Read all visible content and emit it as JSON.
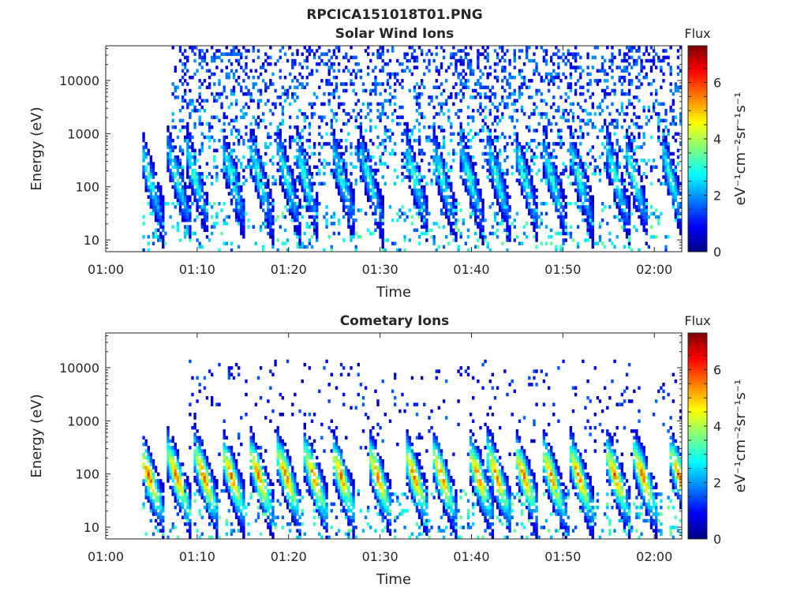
{
  "figure_title": "RPCICA151018T01.PNG",
  "colorbar_palette": [
    "#00007f",
    "#0000ff",
    "#007fff",
    "#00ffff",
    "#7fff7f",
    "#ffff00",
    "#ff7f00",
    "#ff0000",
    "#7f0000"
  ],
  "chart_data": [
    {
      "type": "heatmap",
      "title": "Solar Wind Ions",
      "xlabel": "Time",
      "ylabel": "Energy (eV)",
      "y_scale": "log",
      "xlim": [
        "01:00",
        "02:03"
      ],
      "ylim": [
        6,
        45000
      ],
      "x_ticks": [
        "01:00",
        "01:10",
        "01:20",
        "01:30",
        "01:40",
        "01:50",
        "02:00"
      ],
      "y_ticks": [
        10,
        100,
        1000,
        10000
      ],
      "y_tick_labels": [
        "10",
        "100",
        "1000",
        "10000"
      ],
      "colorbar": {
        "label": "Flux",
        "units": "eV⁻¹cm⁻²sr⁻¹s⁻¹",
        "range": [
          0,
          7.3
        ],
        "ticks": [
          0,
          2,
          4,
          6
        ]
      },
      "data_start": "01:04",
      "data_end": "02:03",
      "dispersion_events": [
        "01:04",
        "01:07",
        "01:09",
        "01:13",
        "01:16",
        "01:19",
        "01:21",
        "01:25",
        "01:28",
        "01:33",
        "01:36",
        "01:39",
        "01:42",
        "01:45",
        "01:48",
        "01:51",
        "01:55",
        "01:57",
        "02:01"
      ],
      "peak_log_flux": 3.2,
      "background": "sparse flux 1-4 at 100-40000 eV"
    },
    {
      "type": "heatmap",
      "title": "Cometary Ions",
      "xlabel": "Time",
      "ylabel": "Energy (eV)",
      "y_scale": "log",
      "xlim": [
        "01:00",
        "02:03"
      ],
      "ylim": [
        6,
        45000
      ],
      "x_ticks": [
        "01:00",
        "01:10",
        "01:20",
        "01:30",
        "01:40",
        "01:50",
        "02:00"
      ],
      "y_ticks": [
        10,
        100,
        1000,
        10000
      ],
      "y_tick_labels": [
        "10",
        "100",
        "1000",
        "10000"
      ],
      "colorbar": {
        "label": "Flux",
        "units": "eV⁻¹cm⁻²sr⁻¹s⁻¹",
        "range": [
          0,
          7.3
        ],
        "ticks": [
          0,
          2,
          4,
          6
        ]
      },
      "data_start": "01:04",
      "data_end": "02:03",
      "dispersion_events": [
        "01:04",
        "01:07",
        "01:10",
        "01:13",
        "01:16",
        "01:19",
        "01:22",
        "01:25",
        "01:29",
        "01:33",
        "01:36",
        "01:40",
        "01:42",
        "01:45",
        "01:48",
        "01:51",
        "01:55",
        "01:58",
        "02:02"
      ],
      "peak_log_flux": 5.8,
      "background": "sparse flux 0-2 at 200-10000 eV"
    }
  ]
}
